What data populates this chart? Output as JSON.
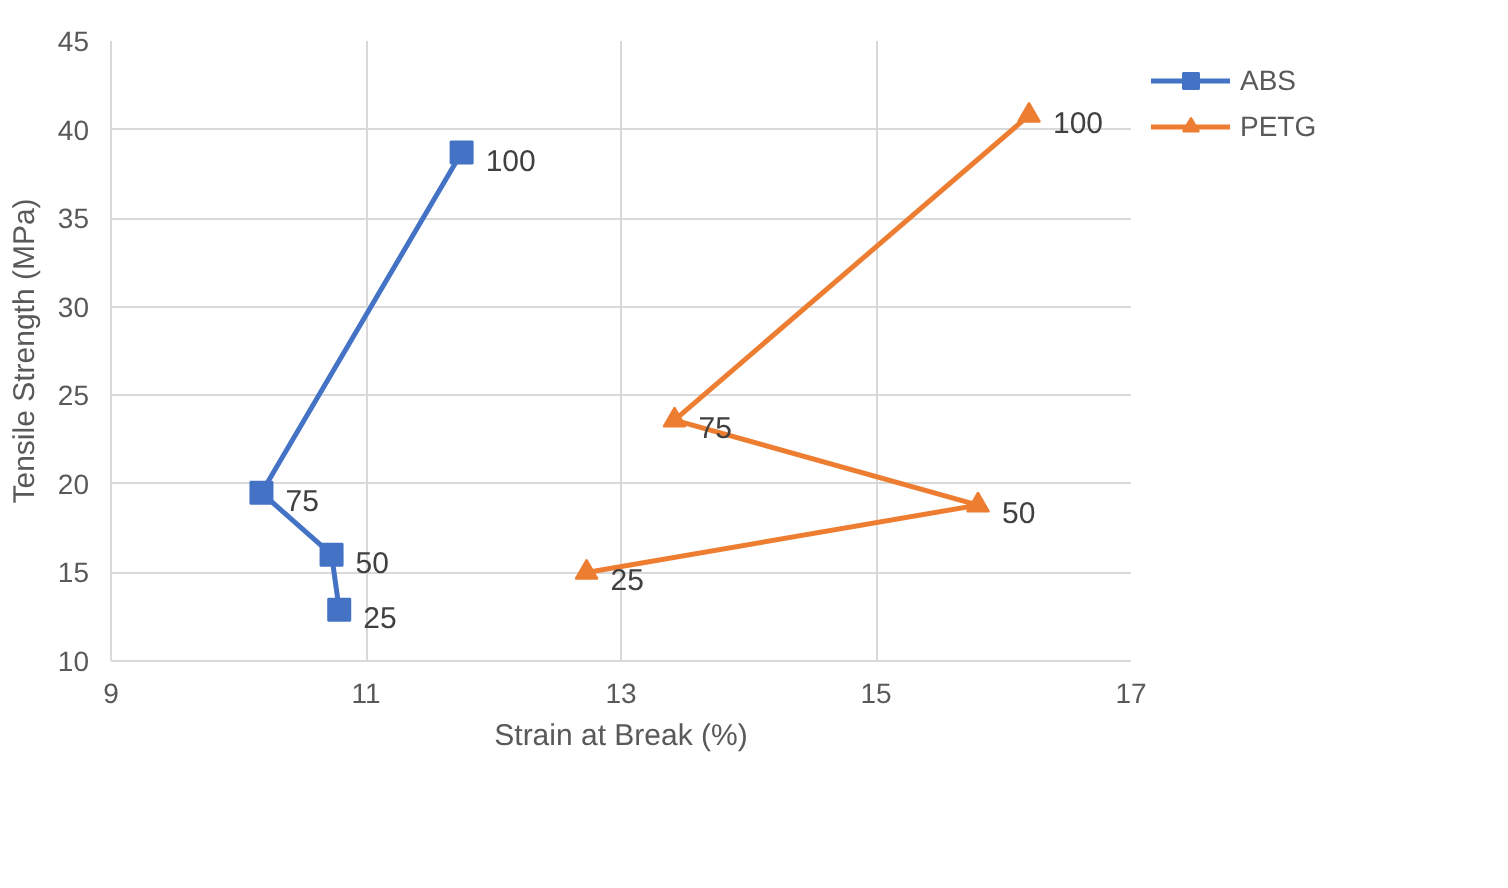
{
  "chart_data": {
    "type": "line",
    "xlabel": "Strain at Break (%)",
    "ylabel": "Tensile Strength (MPa)",
    "xlim": [
      9,
      17
    ],
    "xticks": [
      9,
      11,
      13,
      15,
      17
    ],
    "ylim": [
      10,
      45
    ],
    "yticks": [
      10,
      15,
      20,
      25,
      30,
      35,
      40,
      45
    ],
    "grid": true,
    "legend": "top right",
    "line_style": "solid",
    "series": [
      {
        "name": "ABS",
        "color": "#4472c4",
        "marker": "square",
        "x": [
          11.75,
          10.18,
          10.73,
          10.79
        ],
        "values": [
          38.7,
          19.5,
          16.0,
          12.9
        ]
      },
      {
        "name": "PETG",
        "color": "#ed7d31",
        "marker": "triangle",
        "x": [
          16.2,
          13.42,
          15.8,
          12.73
        ],
        "values": [
          40.8,
          23.6,
          18.8,
          15.0
        ]
      }
    ],
    "annotations": [
      {
        "text": "100",
        "x": 11.75,
        "y": 38.7
      },
      {
        "text": "75",
        "x": 10.18,
        "y": 19.5
      },
      {
        "text": "50",
        "x": 10.73,
        "y": 16.0
      },
      {
        "text": "25",
        "x": 10.79,
        "y": 12.9
      },
      {
        "text": "100",
        "x": 16.2,
        "y": 40.8
      },
      {
        "text": "75",
        "x": 13.42,
        "y": 23.6
      },
      {
        "text": "50",
        "x": 15.8,
        "y": 18.8
      },
      {
        "text": "25",
        "x": 12.73,
        "y": 15.0
      }
    ]
  }
}
